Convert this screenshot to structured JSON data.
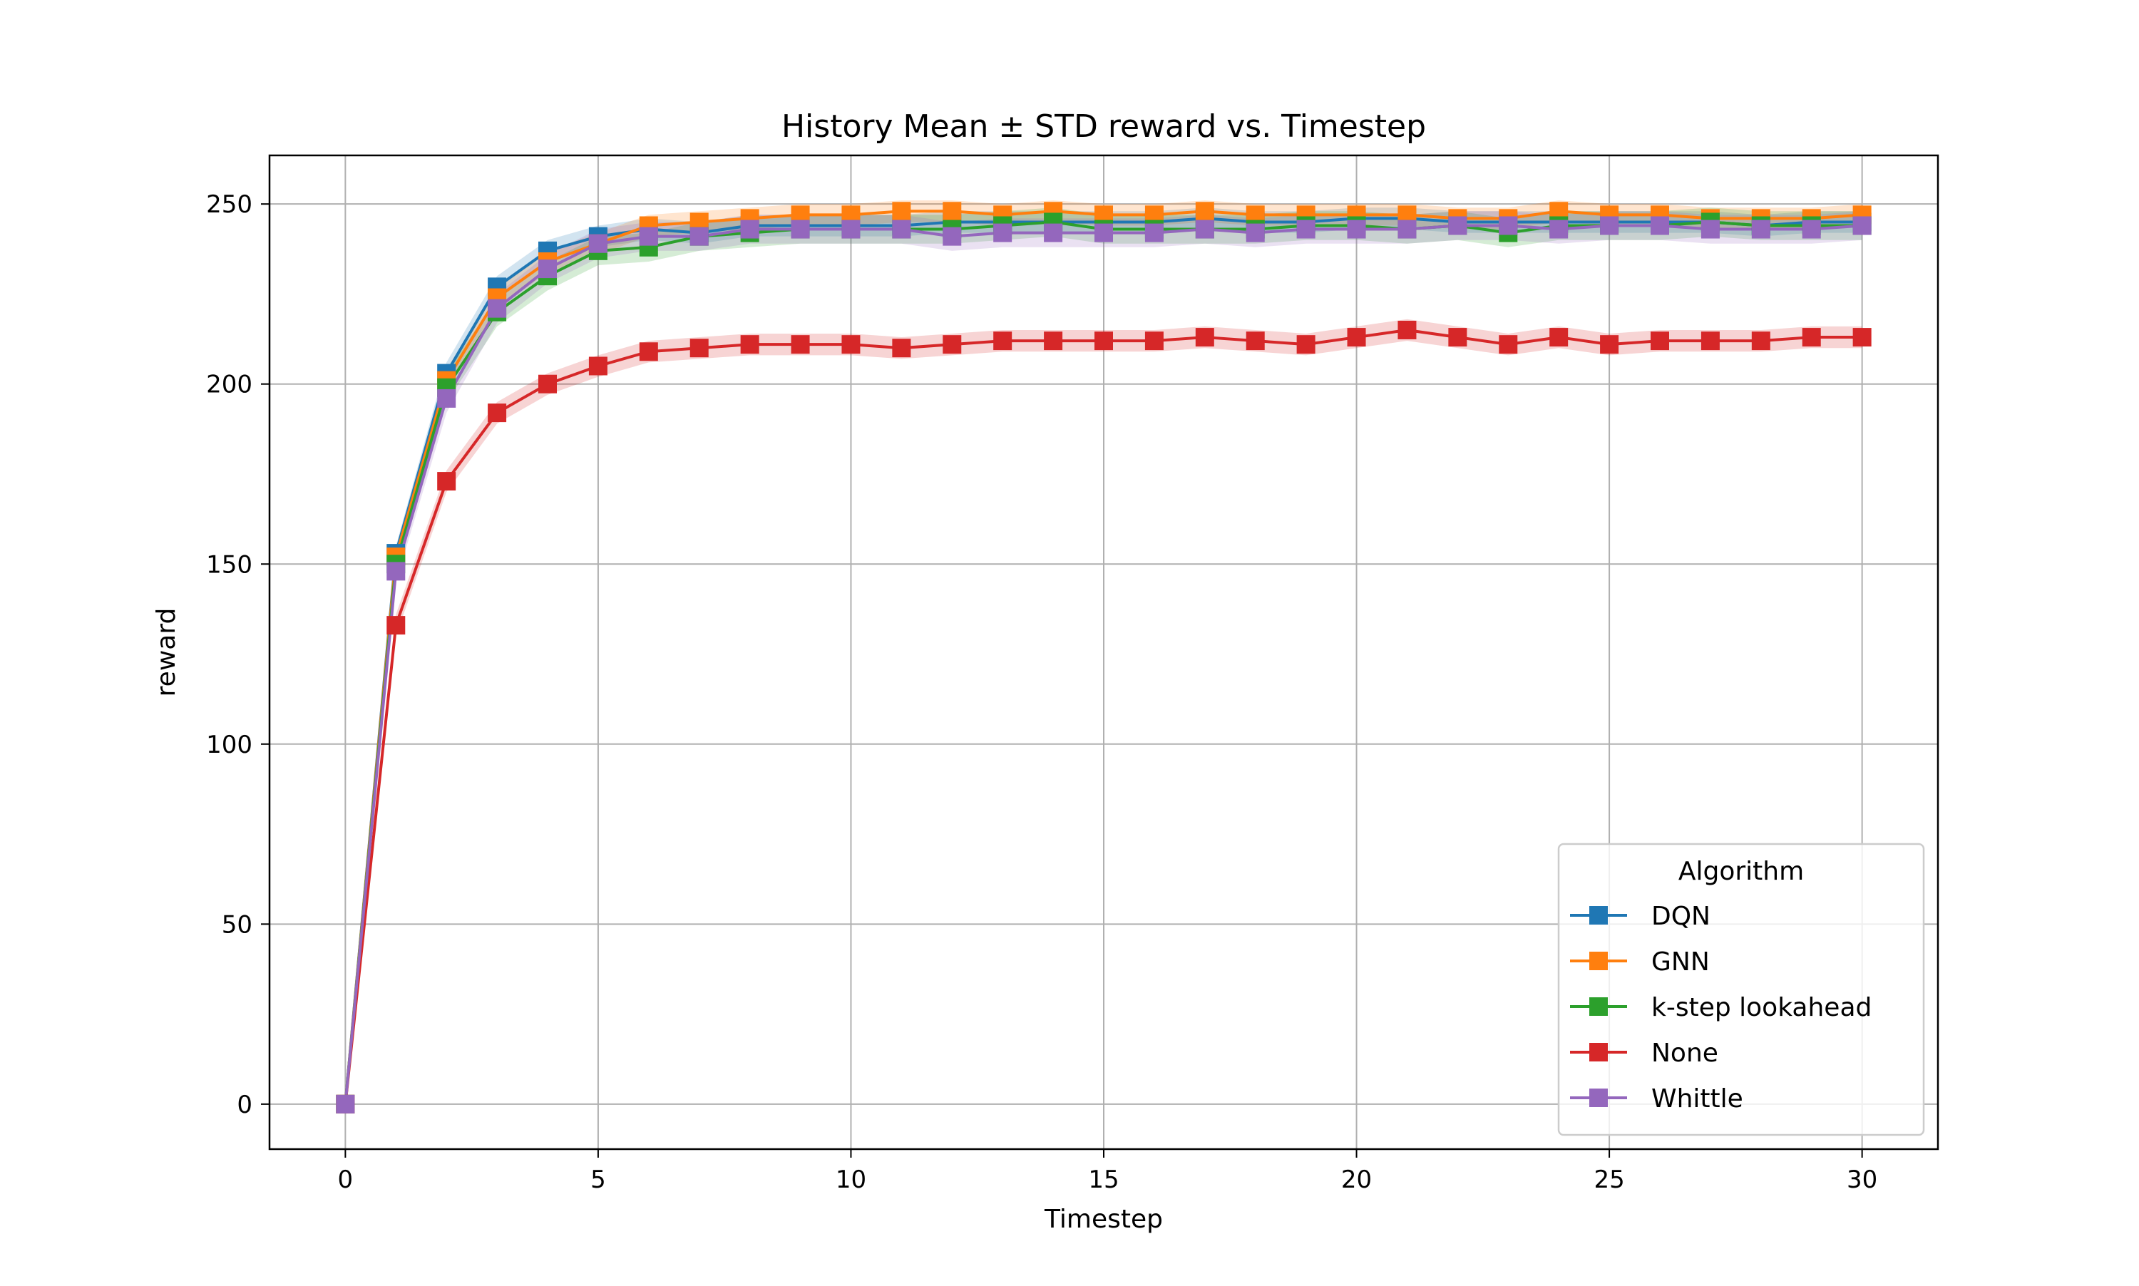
{
  "chart_data": {
    "type": "line",
    "title": "History Mean ± STD reward vs. Timestep",
    "xlabel": "Timestep",
    "ylabel": "reward",
    "xlim": [
      -1.5,
      31.5
    ],
    "ylim": [
      -12.5,
      263.5
    ],
    "xticks": [
      0,
      5,
      10,
      15,
      20,
      25,
      30
    ],
    "yticks": [
      0,
      50,
      100,
      150,
      200,
      250
    ],
    "grid": true,
    "legend": {
      "title": "Algorithm",
      "placement": "lower-right"
    },
    "x": [
      0,
      1,
      2,
      3,
      4,
      5,
      6,
      7,
      8,
      9,
      10,
      11,
      12,
      13,
      14,
      15,
      16,
      17,
      18,
      19,
      20,
      21,
      22,
      23,
      24,
      25,
      26,
      27,
      28,
      29,
      30
    ],
    "series": [
      {
        "name": "DQN",
        "color": "#1f77b4",
        "values": [
          0,
          153,
          203,
          227,
          237,
          241,
          243,
          242,
          244,
          244,
          244,
          244,
          245,
          245,
          245,
          245,
          245,
          246,
          245,
          245,
          246,
          246,
          245,
          245,
          245,
          245,
          245,
          245,
          244,
          245,
          245
        ],
        "std": [
          0,
          2,
          3,
          3,
          3,
          3,
          3,
          3,
          3,
          3,
          3,
          3,
          3,
          3,
          3,
          3,
          3,
          3,
          3,
          3,
          3,
          3,
          3,
          3,
          3,
          3,
          3,
          3,
          3,
          3,
          3
        ]
      },
      {
        "name": "GNN",
        "color": "#ff7f0e",
        "values": [
          0,
          152,
          201,
          224,
          234,
          239,
          244,
          245,
          246,
          247,
          247,
          248,
          248,
          247,
          248,
          247,
          247,
          248,
          247,
          247,
          247,
          247,
          246,
          246,
          248,
          247,
          247,
          246,
          246,
          246,
          247
        ],
        "std": [
          0,
          2,
          3,
          3,
          3,
          3,
          3,
          3,
          3,
          3,
          3,
          3,
          3,
          3,
          3,
          3,
          3,
          3,
          3,
          3,
          3,
          3,
          3,
          3,
          3,
          3,
          3,
          3,
          3,
          3,
          3
        ]
      },
      {
        "name": "k-step lookahead",
        "color": "#2ca02c",
        "values": [
          0,
          150,
          199,
          220,
          230,
          237,
          238,
          241,
          242,
          243,
          243,
          243,
          243,
          244,
          245,
          243,
          243,
          243,
          243,
          244,
          244,
          243,
          244,
          242,
          244,
          244,
          244,
          245,
          244,
          244,
          244
        ],
        "std": [
          0,
          3,
          4,
          4,
          4,
          4,
          4,
          4,
          4,
          4,
          4,
          4,
          4,
          4,
          4,
          4,
          4,
          4,
          4,
          4,
          4,
          4,
          4,
          4,
          4,
          4,
          4,
          4,
          4,
          4,
          4
        ]
      },
      {
        "name": "None",
        "color": "#d62728",
        "values": [
          0,
          133,
          173,
          192,
          200,
          205,
          209,
          210,
          211,
          211,
          211,
          210,
          211,
          212,
          212,
          212,
          212,
          213,
          212,
          211,
          213,
          215,
          213,
          211,
          213,
          211,
          212,
          212,
          212,
          213,
          213
        ],
        "std": [
          0,
          3,
          3,
          3,
          3,
          3,
          3,
          3,
          3,
          3,
          3,
          3,
          3,
          3,
          3,
          3,
          3,
          3,
          3,
          3,
          3,
          3,
          3,
          3,
          3,
          3,
          3,
          3,
          3,
          3,
          3
        ]
      },
      {
        "name": "Whittle",
        "color": "#9467bd",
        "values": [
          0,
          148,
          196,
          221,
          232,
          239,
          241,
          241,
          243,
          243,
          243,
          243,
          241,
          242,
          242,
          242,
          242,
          243,
          242,
          243,
          243,
          243,
          244,
          244,
          243,
          244,
          244,
          243,
          243,
          243,
          244
        ],
        "std": [
          0,
          3,
          4,
          4,
          4,
          4,
          4,
          4,
          4,
          4,
          4,
          4,
          4,
          4,
          4,
          4,
          4,
          4,
          4,
          4,
          4,
          4,
          4,
          4,
          4,
          4,
          4,
          4,
          4,
          4,
          4
        ]
      }
    ]
  }
}
